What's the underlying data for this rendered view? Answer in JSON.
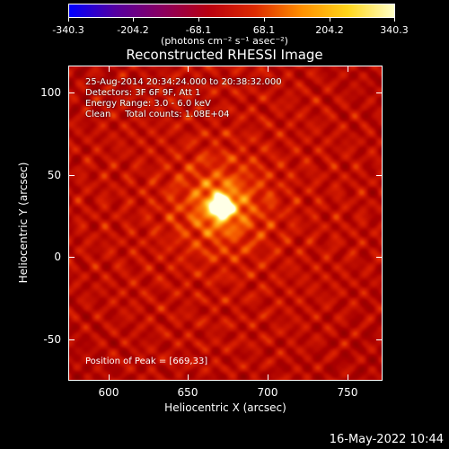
{
  "title": "Reconstructed RHESSI Image",
  "colorbar": {
    "ticks": [
      "-340.3",
      "-204.2",
      "-68.1",
      "68.1",
      "204.2",
      "340.3"
    ],
    "tick_values": [
      -340.3,
      -204.2,
      -68.1,
      68.1,
      204.2,
      340.3
    ],
    "units": "(photons cm⁻² s⁻¹ asec⁻²)",
    "colors": [
      "#0000ff",
      "#5500a0",
      "#8a0060",
      "#b80010",
      "#dd2a00",
      "#ff8f00",
      "#ffd61a",
      "#ffffc8"
    ]
  },
  "info": {
    "time": "25-Aug-2014 20:34:24.000 to 20:38:32.000",
    "detectors": "Detectors: 3F 6F 9F, Att 1",
    "energy": "Energy Range: 3.0 - 6.0 keV",
    "clean": "Clean     Total counts: 1.08E+04",
    "peak": "Position of Peak = [669,33]"
  },
  "axes": {
    "xlabel": "Heliocentric X (arcsec)",
    "ylabel": "Heliocentric Y (arcsec)",
    "xticks": [
      "600",
      "650",
      "700",
      "750"
    ],
    "yticks": [
      "100",
      "50",
      "0",
      "-50"
    ]
  },
  "timestamp": "16-May-2022 10:44",
  "chart_data": {
    "type": "heatmap",
    "title": "Reconstructed RHESSI Image",
    "xlabel": "Heliocentric X (arcsec)",
    "ylabel": "Heliocentric Y (arcsec)",
    "xlim": [
      575,
      768
    ],
    "ylim": [
      -75,
      120
    ],
    "xticks": [
      600,
      650,
      700,
      750
    ],
    "yticks": [
      -50,
      0,
      50,
      100
    ],
    "value_range": [
      -340.3,
      340.3
    ],
    "peak": [
      669,
      33
    ],
    "colormap": "red-temperature"
  }
}
